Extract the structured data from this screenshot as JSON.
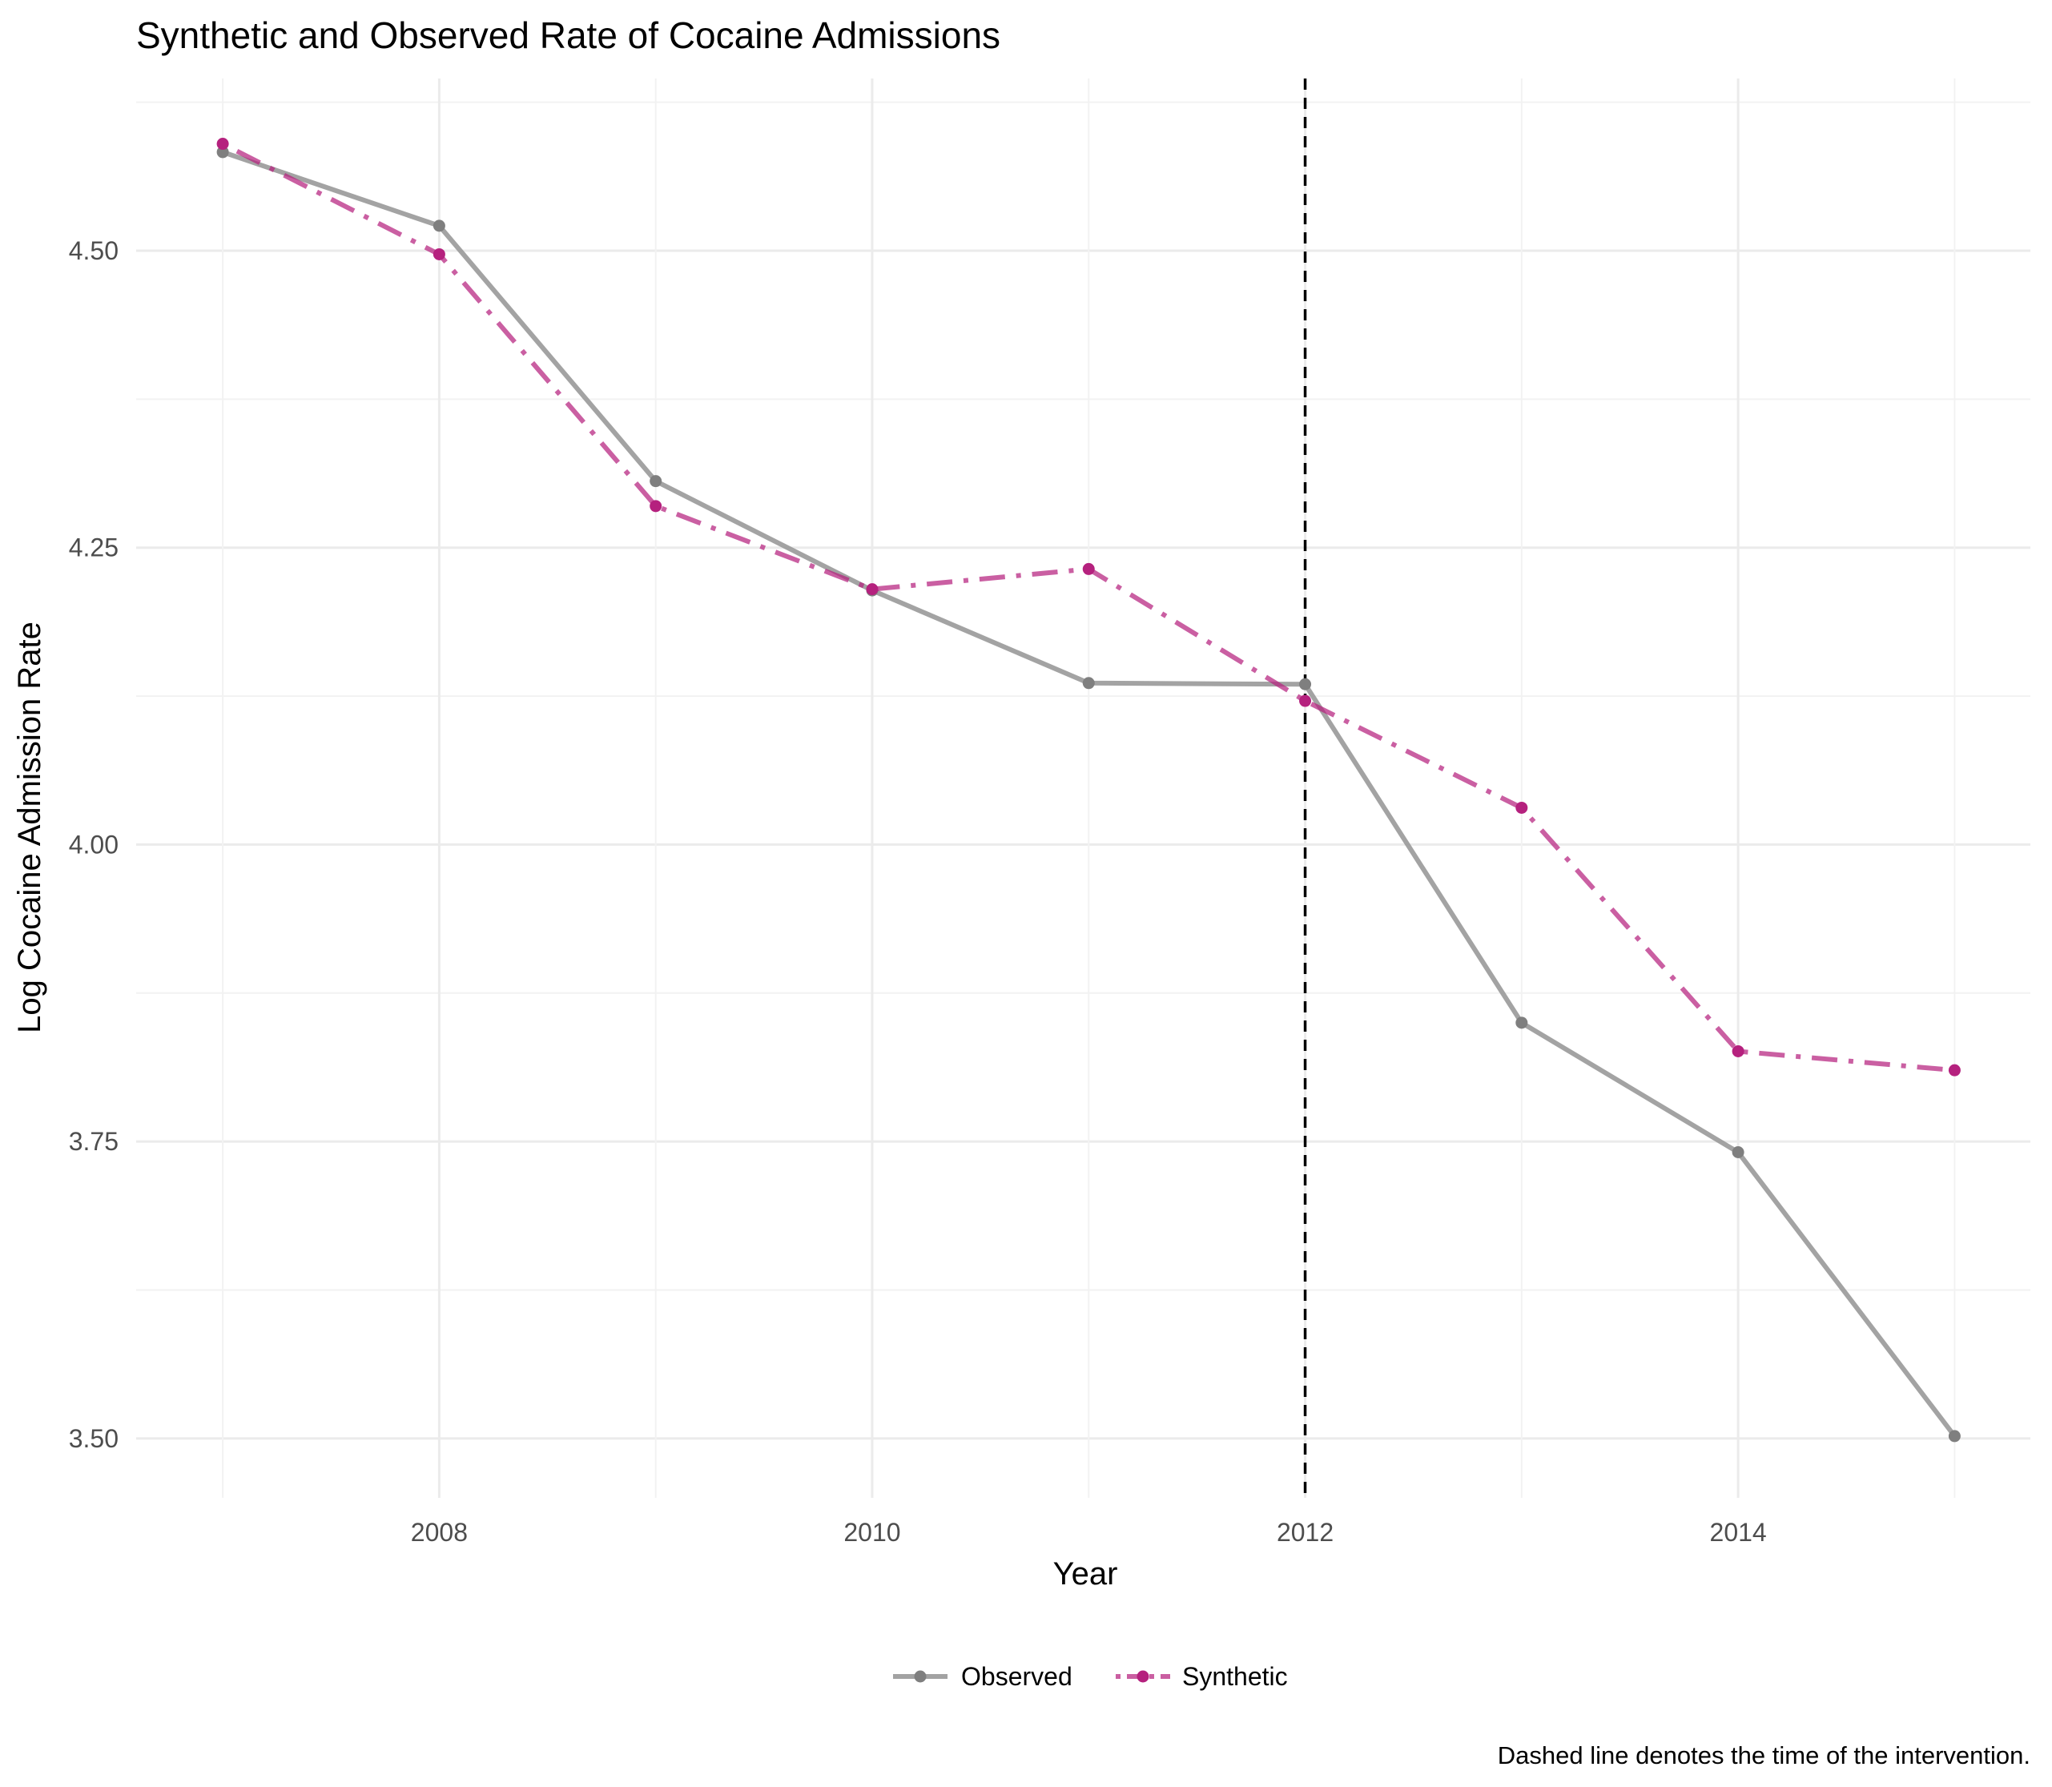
{
  "chart_data": {
    "type": "line",
    "title": "Synthetic and Observed Rate of Cocaine Admissions",
    "xlabel": "Year",
    "ylabel": "Log Cocaine Admission Rate",
    "caption": "Dashed line denotes the time of the intervention.",
    "x": [
      2007,
      2008,
      2009,
      2010,
      2011,
      2012,
      2013,
      2014,
      2015
    ],
    "x_ticks": [
      "2008",
      "2010",
      "2012",
      "2014"
    ],
    "y_ticks": [
      "3.50",
      "3.75",
      "4.00",
      "4.25",
      "4.50"
    ],
    "xlim": [
      2006.6,
      2015.35
    ],
    "ylim": [
      3.45,
      4.645
    ],
    "grid": true,
    "legend_position": "bottom",
    "intervention_year": 2012,
    "series": [
      {
        "name": "Observed",
        "color": "#999999",
        "line_style": "solid",
        "values": [
          4.583,
          4.521,
          4.306,
          4.214,
          4.136,
          4.135,
          3.85,
          3.741,
          3.502
        ]
      },
      {
        "name": "Synthetic",
        "color": "#B5217E",
        "line_style": "dotdash",
        "values": [
          4.59,
          4.497,
          4.285,
          4.215,
          4.232,
          4.121,
          4.031,
          3.826,
          3.81
        ]
      }
    ]
  }
}
